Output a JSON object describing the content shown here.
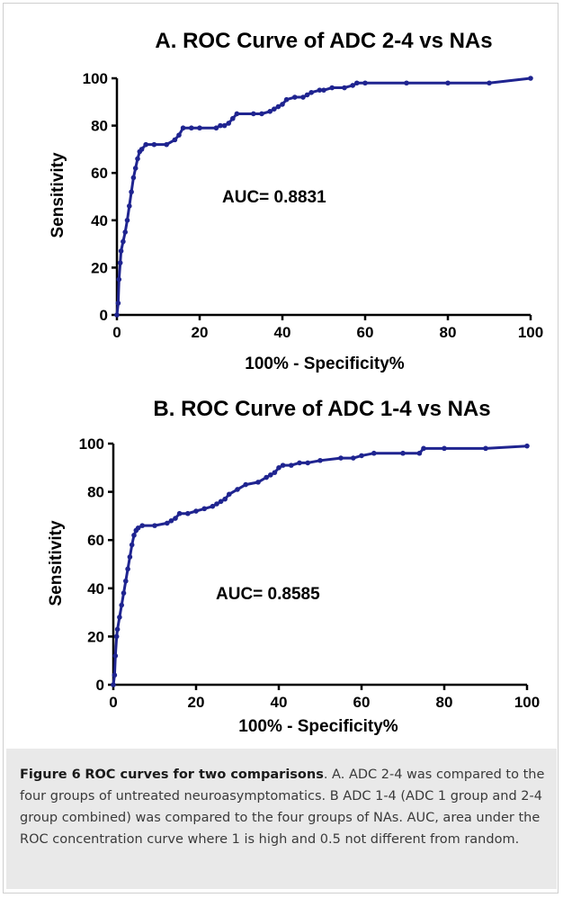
{
  "chart_data": [
    {
      "type": "line",
      "title": "A. ROC Curve of ADC 2-4 vs NAs",
      "xlabel": "100% - Specificity%",
      "ylabel": "Sensitivity",
      "xlim": [
        0,
        100
      ],
      "ylim": [
        0,
        100
      ],
      "xticks": [
        "0",
        "20",
        "40",
        "60",
        "80",
        "100"
      ],
      "yticks": [
        "0",
        "20",
        "40",
        "60",
        "80",
        "100"
      ],
      "annotation": "AUC= 0.8831",
      "line_color": "#1f2490",
      "grid": false,
      "x": [
        0,
        0.3,
        0.5,
        0.8,
        1,
        1.5,
        2,
        2.5,
        3,
        3.5,
        4,
        4.5,
        5,
        5.5,
        6,
        7,
        9,
        12,
        14,
        15,
        16,
        18,
        20,
        24,
        25,
        26,
        27,
        28,
        29,
        33,
        35,
        37,
        38,
        39,
        40,
        41,
        43,
        45,
        46,
        47,
        49,
        50,
        52,
        55,
        57,
        58,
        60,
        70,
        80,
        90,
        100
      ],
      "y": [
        0,
        5,
        15,
        22,
        27,
        31,
        35,
        40,
        46,
        52,
        58,
        62,
        66,
        69,
        70,
        72,
        72,
        72,
        74,
        76,
        79,
        79,
        79,
        79,
        80,
        80,
        81,
        83,
        85,
        85,
        85,
        86,
        87,
        88,
        89,
        91,
        92,
        92,
        93,
        94,
        95,
        95,
        96,
        96,
        97,
        98,
        98,
        98,
        98,
        98,
        100
      ]
    },
    {
      "type": "line",
      "title": "B. ROC Curve of ADC 1-4 vs NAs",
      "xlabel": "100% - Specificity%",
      "ylabel": "Sensitivity",
      "xlim": [
        0,
        100
      ],
      "ylim": [
        0,
        100
      ],
      "xticks": [
        "0",
        "20",
        "40",
        "60",
        "80",
        "100"
      ],
      "yticks": [
        "0",
        "20",
        "40",
        "60",
        "80",
        "100"
      ],
      "annotation": "AUC= 0.8585",
      "line_color": "#1f2490",
      "grid": false,
      "x": [
        0,
        0.3,
        0.5,
        0.8,
        1,
        1.5,
        2,
        2.5,
        3,
        3.5,
        4,
        4.5,
        5,
        5.5,
        6,
        7,
        10,
        13,
        14,
        15,
        16,
        18,
        20,
        22,
        24,
        25,
        26,
        27,
        28,
        30,
        32,
        35,
        37,
        38,
        39,
        40,
        41,
        43,
        45,
        47,
        50,
        55,
        58,
        60,
        63,
        70,
        74,
        75,
        80,
        90,
        100
      ],
      "y": [
        0,
        4,
        12,
        20,
        23,
        28,
        33,
        38,
        43,
        48,
        53,
        58,
        62,
        64,
        65,
        66,
        66,
        67,
        68,
        69,
        71,
        71,
        72,
        73,
        74,
        75,
        76,
        77,
        79,
        81,
        83,
        84,
        86,
        87,
        88,
        90,
        91,
        91,
        92,
        92,
        93,
        94,
        94,
        95,
        96,
        96,
        96,
        98,
        98,
        98,
        99
      ]
    }
  ],
  "caption": {
    "label": "Figure 6",
    "heading": "ROC curves for two comparisons",
    "text": ". A. ADC 2-4 was compared to the four groups of untreated neuroasymptomatics. B ADC 1-4 (ADC 1 group and 2-4 group combined) was compared to the four groups of NAs. AUC, area under the ROC concentration curve where 1 is high and 0.5 not different from random."
  }
}
